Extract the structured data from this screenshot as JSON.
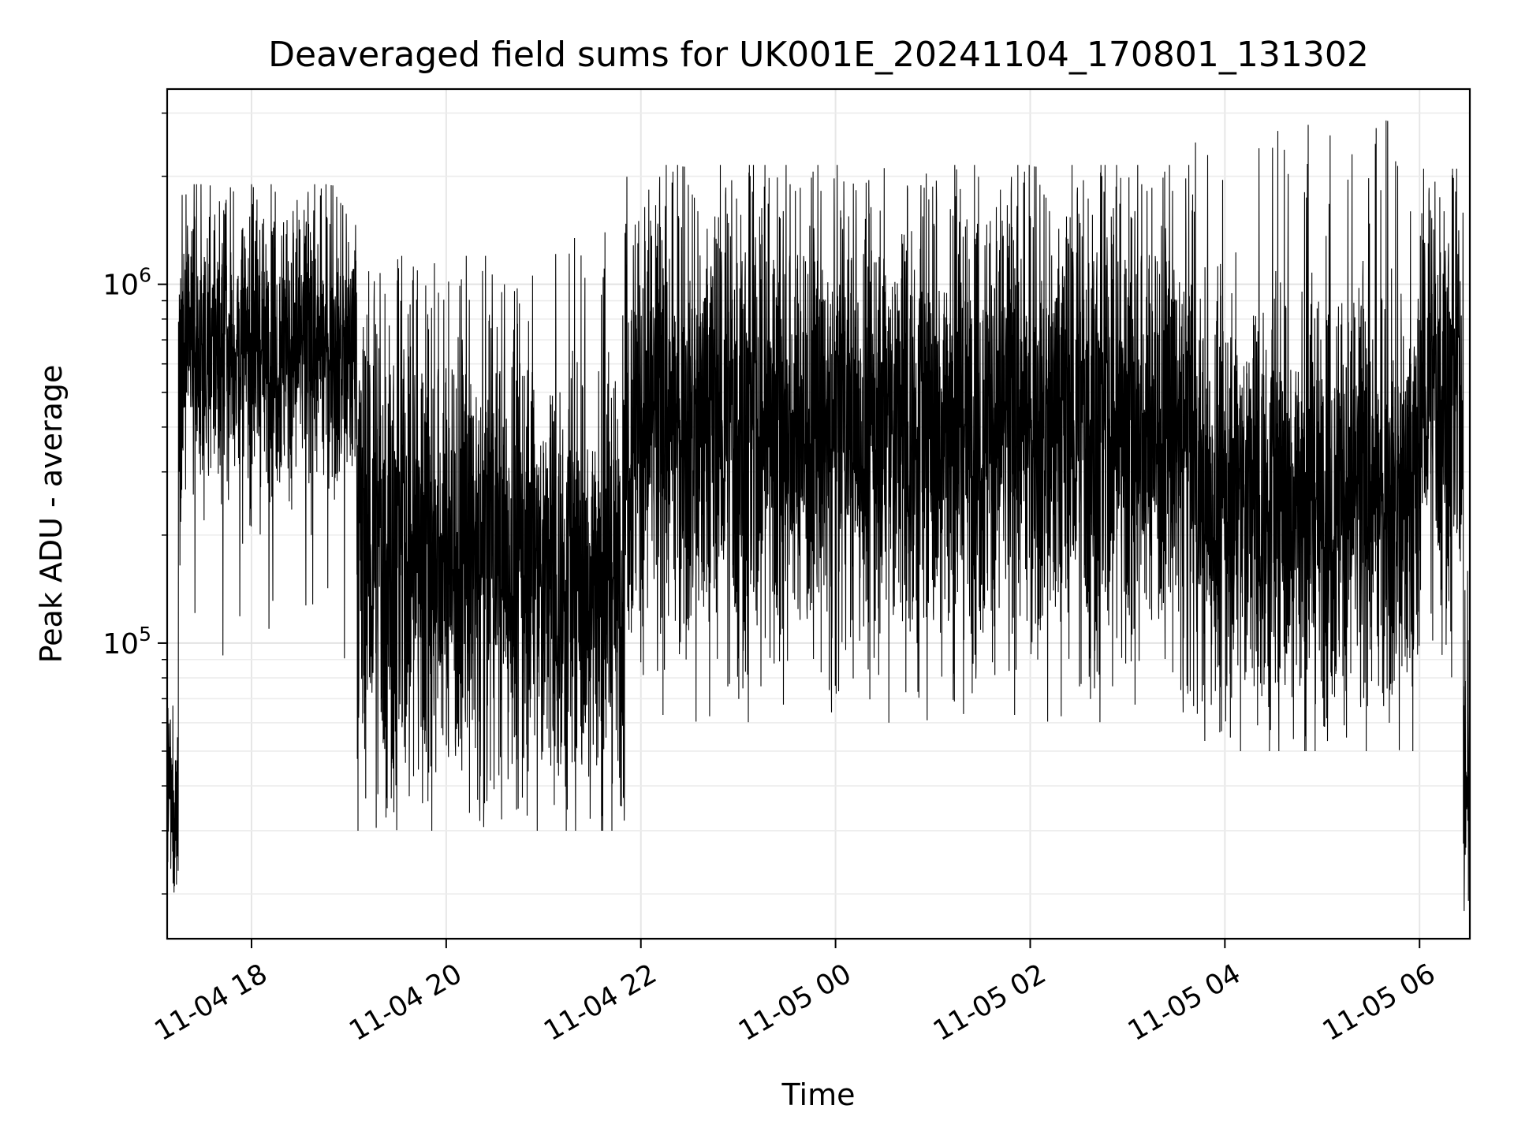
{
  "chart_data": {
    "type": "line",
    "title": "Deaveraged field sums for UK001E_20241104_170801_131302",
    "xlabel": "Time",
    "ylabel": "Peak ADU - average",
    "yscale": "log",
    "ylim": [
      15000,
      3500000
    ],
    "xlim": [
      "2024-11-04 17:08",
      "2024-11-05 06:31"
    ],
    "x_ticks": [
      "11-04 18",
      "11-04 20",
      "11-04 22",
      "11-05 00",
      "11-05 02",
      "11-05 04",
      "11-05 06"
    ],
    "y_ticks": [
      "10^5",
      "10^6"
    ],
    "grid": true,
    "line_color": "#000000",
    "series": [
      {
        "x_start": "2024-11-04 17:08",
        "x_end": "2024-11-05 06:31",
        "segments": [
          {
            "from": "2024-11-04 17:08",
            "to": "2024-11-04 17:15",
            "low": 17000,
            "high": 70000,
            "center": 35000
          },
          {
            "from": "2024-11-04 17:15",
            "to": "2024-11-04 19:05",
            "low": 90000,
            "high": 1900000,
            "center": 650000
          },
          {
            "from": "2024-11-04 19:05",
            "to": "2024-11-04 20:55",
            "low": 30000,
            "high": 1200000,
            "center": 180000
          },
          {
            "from": "2024-11-04 20:55",
            "to": "2024-11-04 21:50",
            "low": 30000,
            "high": 1450000,
            "center": 150000
          },
          {
            "from": "2024-11-04 21:50",
            "to": "2024-11-05 03:40",
            "low": 60000,
            "high": 2150000,
            "center": 400000
          },
          {
            "from": "2024-11-05 03:40",
            "to": "2024-11-05 06:00",
            "low": 50000,
            "high": 2900000,
            "center": 250000
          },
          {
            "from": "2024-11-05 06:00",
            "to": "2024-11-05 06:27",
            "low": 80000,
            "high": 2100000,
            "center": 500000
          },
          {
            "from": "2024-11-05 06:27",
            "to": "2024-11-05 06:31",
            "low": 16000,
            "high": 180000,
            "center": 40000
          }
        ]
      }
    ]
  }
}
